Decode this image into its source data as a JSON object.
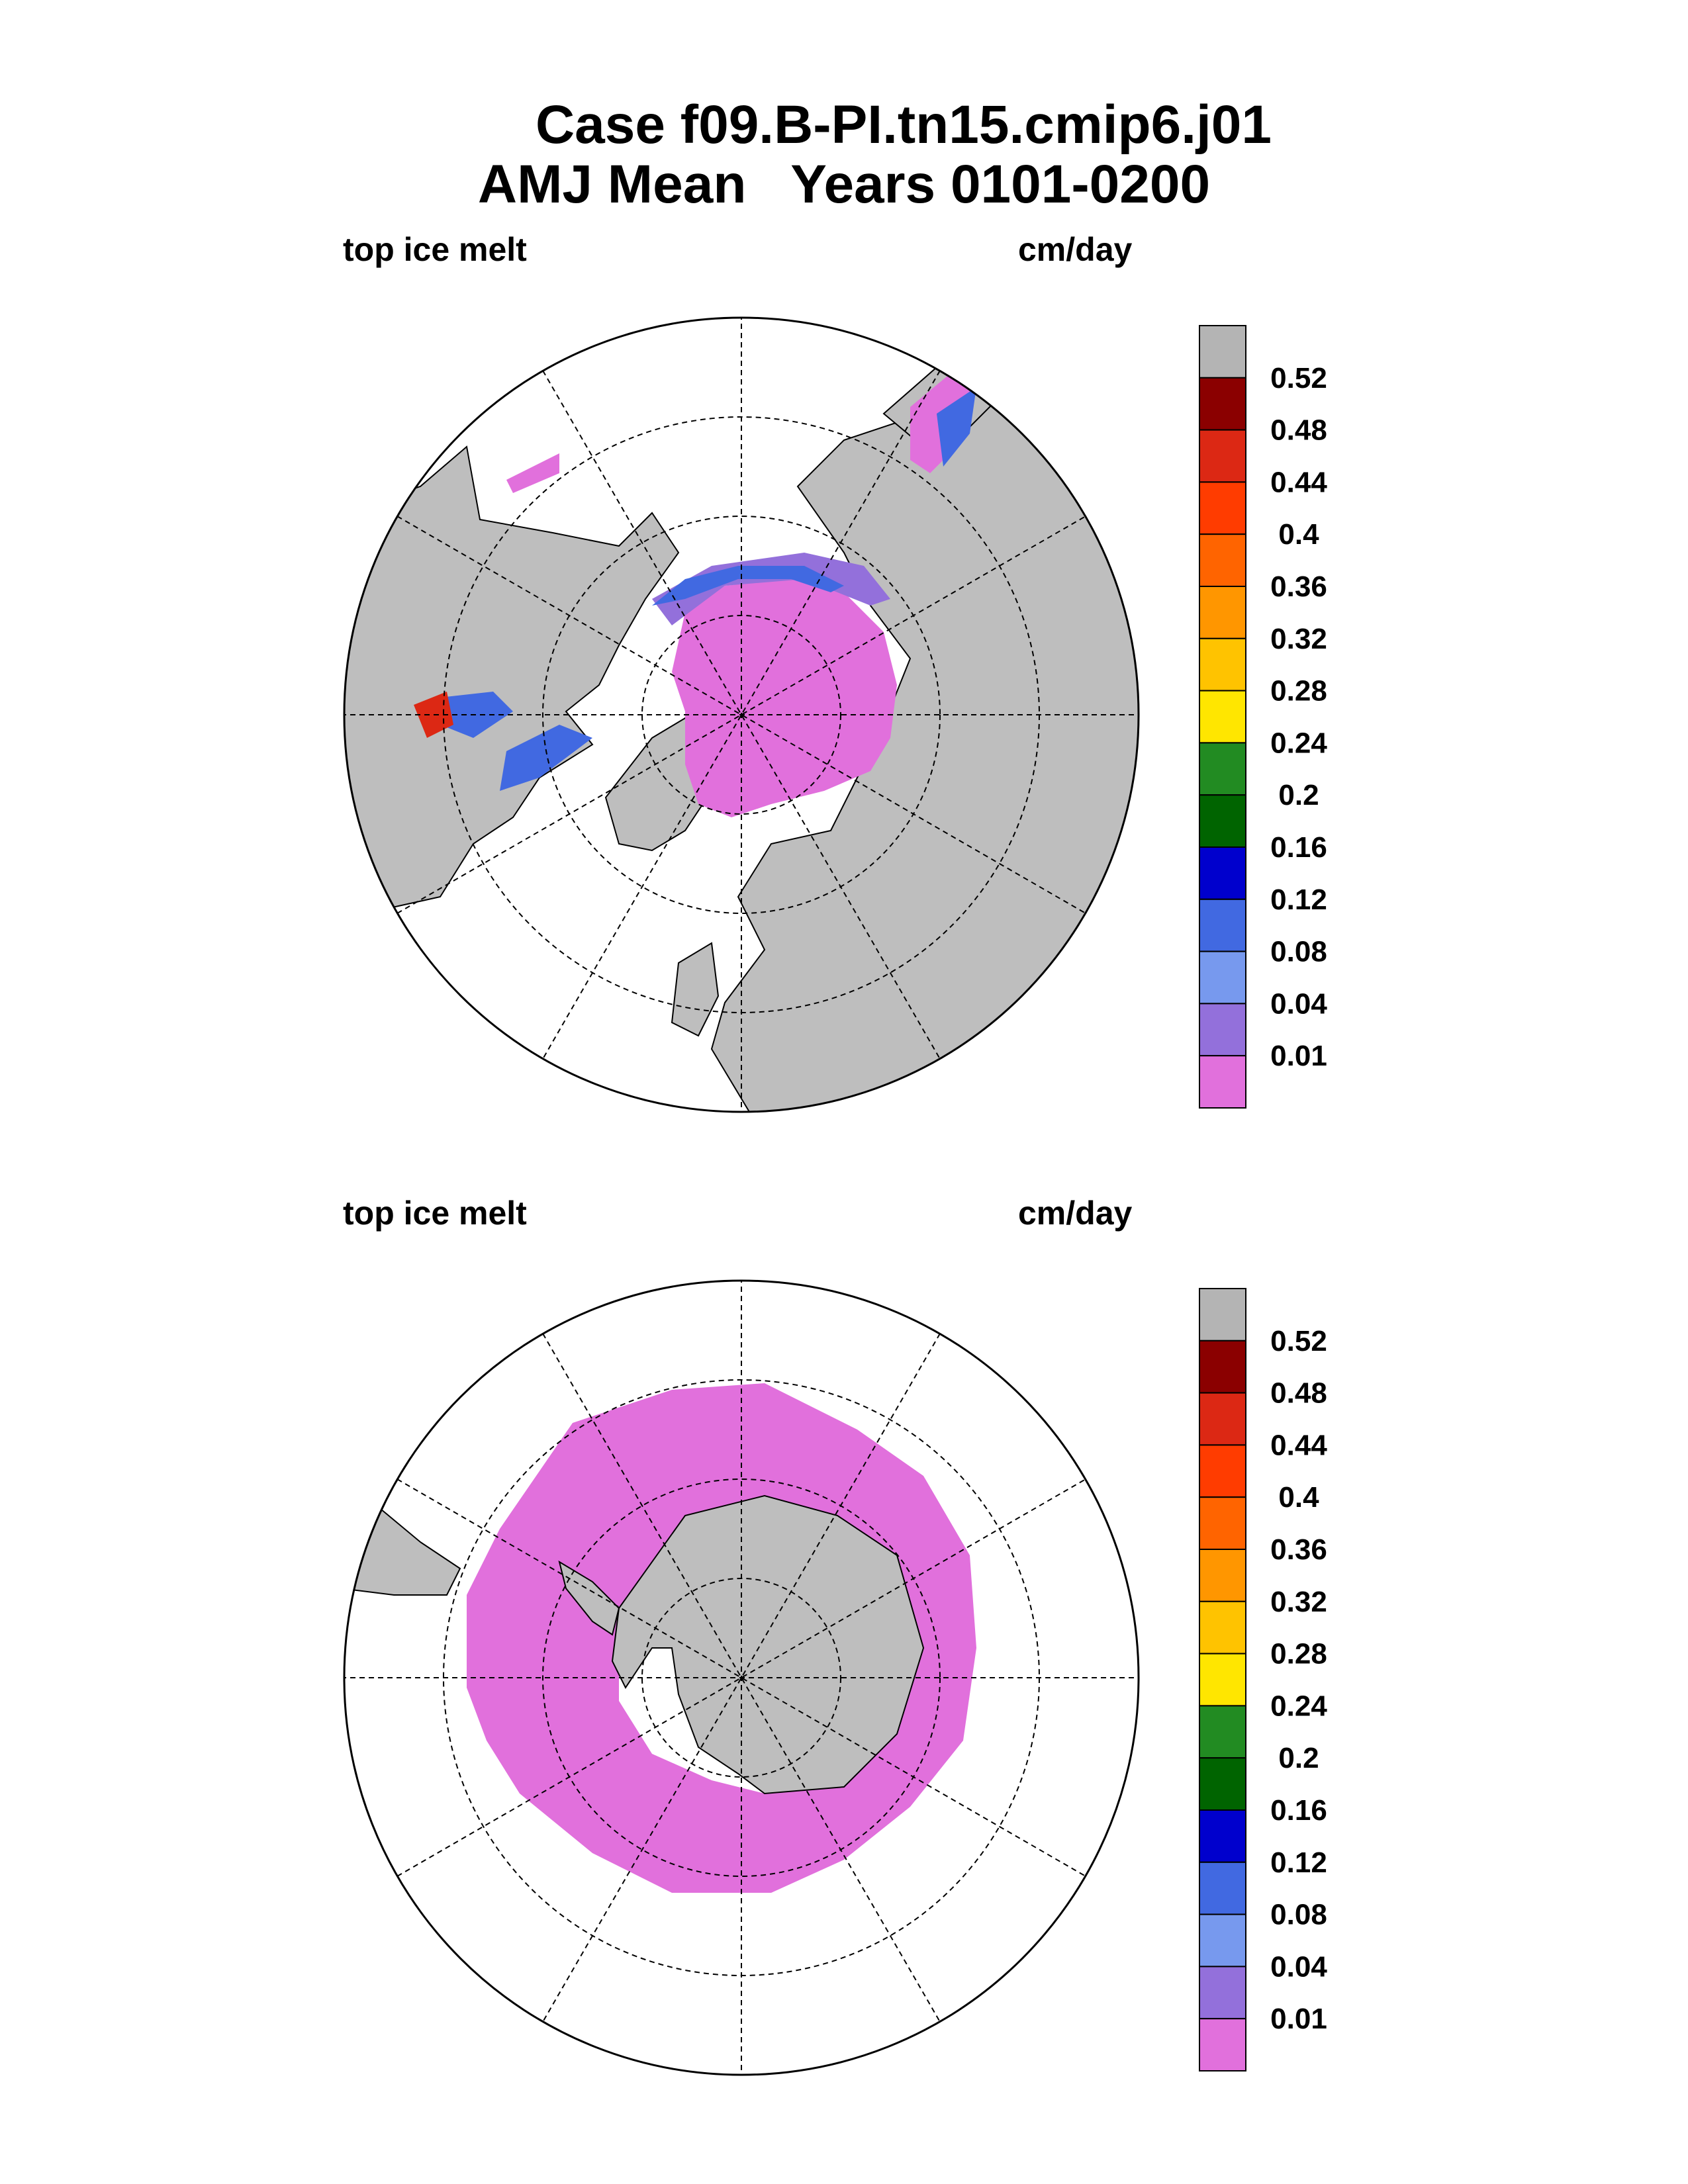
{
  "title": {
    "line1": "Case f09.B-PI.tn15.cmip6.j01",
    "line2": "AMJ Mean   Years 0101-0200"
  },
  "panels": [
    {
      "hemisphere": "north",
      "left_label": "top ice melt",
      "right_label": "cm/day"
    },
    {
      "hemisphere": "south",
      "left_label": "top ice melt",
      "right_label": "cm/day"
    }
  ],
  "colorbar": {
    "levels": [
      "0.52",
      "0.48",
      "0.44",
      "0.4",
      "0.36",
      "0.32",
      "0.28",
      "0.24",
      "0.2",
      "0.16",
      "0.12",
      "0.08",
      "0.04",
      "0.01"
    ],
    "colors_top_to_bottom": [
      "#b4b4b4",
      "#8b0000",
      "#dc2814",
      "#ff3c00",
      "#ff6400",
      "#ff9600",
      "#ffc300",
      "#ffe600",
      "#228b22",
      "#006400",
      "#0000cd",
      "#4169e1",
      "#7799ee",
      "#9370db",
      "#e170dc"
    ]
  },
  "map_colors": {
    "land": "#bebebe",
    "ocean": "#ffffff",
    "ice_melt_low": "#e170dc"
  }
}
